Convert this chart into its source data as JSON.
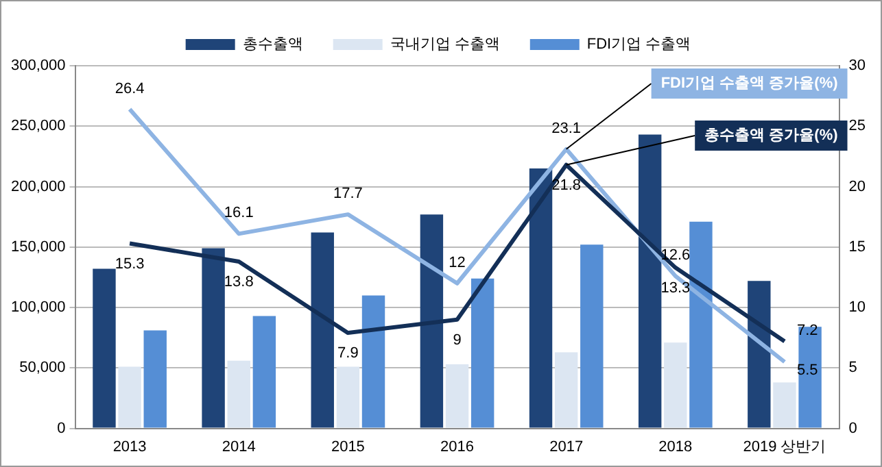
{
  "chart_data": {
    "type": "bar",
    "categories": [
      "2013",
      "2014",
      "2015",
      "2016",
      "2017",
      "2018",
      "2019 상반기"
    ],
    "series": [
      {
        "name": "총수출액",
        "color": "#1f4478",
        "values": [
          132000,
          149000,
          162000,
          177000,
          215000,
          243000,
          122000
        ]
      },
      {
        "name": "국내기업 수출액",
        "color": "#dce6f2",
        "values": [
          51000,
          56000,
          51000,
          53000,
          63000,
          71000,
          38000
        ]
      },
      {
        "name": "FDI기업 수출액",
        "color": "#558ed5",
        "values": [
          81000,
          93000,
          110000,
          124000,
          152000,
          171000,
          84000
        ]
      },
      {
        "name": "총수출액 증가율(%)",
        "type": "line",
        "axis": "y2",
        "color": "#132f57",
        "values": [
          15.3,
          13.8,
          7.9,
          9,
          21.8,
          13.3,
          7.2
        ],
        "value_labels": [
          "15.3",
          "13.8",
          "7.9",
          "9",
          "21.8",
          "13.3",
          "7.2"
        ]
      },
      {
        "name": "FDI기업 수출액 증가율(%)",
        "type": "line",
        "axis": "y2",
        "color": "#8eb4e3",
        "values": [
          26.4,
          16.1,
          17.7,
          12,
          23.1,
          12.6,
          5.5
        ],
        "value_labels": [
          "26.4",
          "16.1",
          "17.7",
          "12",
          "23.1",
          "12.6",
          "5.5"
        ]
      }
    ],
    "ylim": [
      0,
      300000
    ],
    "yticks": [
      0,
      {
        "value": 50000,
        "label": "50,000"
      },
      {
        "value": 100000,
        "label": "100,000"
      },
      {
        "value": 150000,
        "label": "150,000"
      },
      {
        "value": 200000,
        "label": "200,000"
      },
      {
        "value": 250000,
        "label": "250,000"
      },
      {
        "value": 300000,
        "label": "300,000"
      }
    ],
    "y2lim": [
      0,
      30
    ],
    "y2ticks": [
      0,
      5,
      10,
      15,
      20,
      25,
      30
    ],
    "grid": "y",
    "legend": "top",
    "marker": "none"
  }
}
